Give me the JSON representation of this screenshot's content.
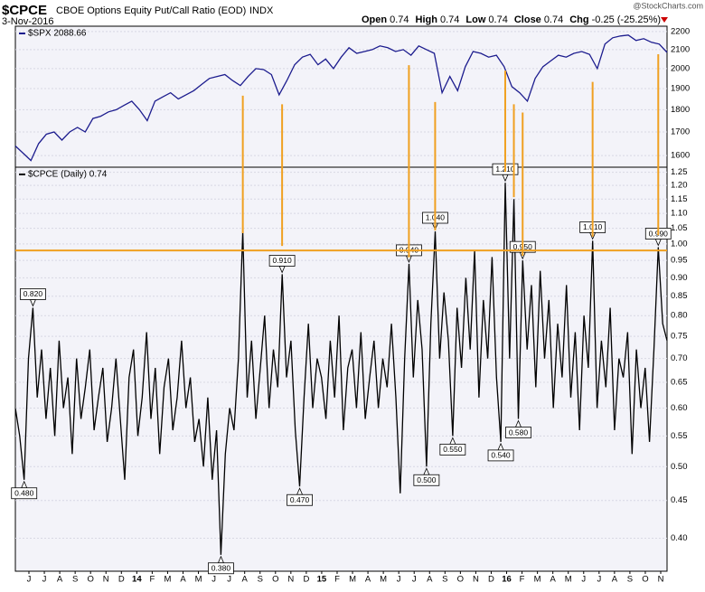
{
  "header": {
    "symbol": "$CPCE",
    "name": "CBOE Options Equity Put/Call Ratio (EOD)",
    "exchange": "INDX",
    "date": "3-Nov-2016",
    "quote": [
      {
        "label": "Open",
        "value": "0.74"
      },
      {
        "label": "High",
        "value": "0.74"
      },
      {
        "label": "Low",
        "value": "0.74"
      },
      {
        "label": "Close",
        "value": "0.74"
      },
      {
        "label": "Chg",
        "value": "-0.25 (-25.25%)"
      }
    ],
    "credit": "@StockCharts.com"
  },
  "chart_data": [
    {
      "type": "line",
      "log_scale": true,
      "grid": true,
      "legend": "$SPX 2088.66",
      "xlim": [
        0.12,
        42.41
      ],
      "ylim": [
        1553,
        2230
      ],
      "yticks": [
        1600,
        1700,
        1800,
        1900,
        2000,
        2100,
        2200
      ],
      "series": [
        {
          "name": "$SPX",
          "color": "#1c1c8e",
          "values": [
            1640,
            1610,
            1580,
            1650,
            1690,
            1700,
            1665,
            1700,
            1720,
            1700,
            1760,
            1770,
            1790,
            1800,
            1820,
            1840,
            1800,
            1750,
            1840,
            1860,
            1880,
            1850,
            1870,
            1890,
            1920,
            1950,
            1960,
            1970,
            1940,
            1915,
            1960,
            2000,
            1995,
            1970,
            1870,
            1940,
            2020,
            2060,
            2075,
            2020,
            2050,
            2000,
            2060,
            2110,
            2080,
            2090,
            2100,
            2120,
            2110,
            2090,
            2100,
            2070,
            2120,
            2100,
            2080,
            1880,
            1960,
            1890,
            2010,
            2090,
            2080,
            2060,
            2070,
            2010,
            1910,
            1880,
            1840,
            1950,
            2010,
            2040,
            2070,
            2060,
            2080,
            2090,
            2075,
            2000,
            2130,
            2165,
            2175,
            2180,
            2150,
            2160,
            2140,
            2130,
            2085
          ]
        }
      ]
    },
    {
      "type": "line",
      "log_scale": true,
      "grid": true,
      "legend": "$CPCE (Daily) 0.74",
      "xlim": [
        0.12,
        42.41
      ],
      "ylim": [
        0.361,
        1.27
      ],
      "yticks": [
        1.25,
        {
          "value": 1.2,
          "label": "1.20"
        },
        1.15,
        {
          "value": 1.1,
          "label": "1.10"
        },
        1.05,
        {
          "value": 1,
          "label": "1.00"
        },
        0.95,
        {
          "value": 0.9,
          "label": "0.90"
        },
        0.85,
        {
          "value": 0.8,
          "label": "0.80"
        },
        0.75,
        {
          "value": 0.7,
          "label": "0.70"
        },
        0.65,
        {
          "value": 0.6,
          "label": "0.60"
        },
        0.55,
        {
          "value": 0.5,
          "label": "0.50"
        },
        0.45,
        {
          "value": 0.4,
          "label": "0.40"
        }
      ],
      "xticks": [
        {
          "value": 1,
          "label": "J"
        },
        {
          "value": 2,
          "label": "J"
        },
        {
          "value": 3,
          "label": "A"
        },
        {
          "value": 4,
          "label": "S"
        },
        {
          "value": 5,
          "label": "O"
        },
        {
          "value": 6,
          "label": "N"
        },
        {
          "value": 7,
          "label": "D"
        },
        {
          "value": 8,
          "label": "14"
        },
        {
          "value": 9,
          "label": "F"
        },
        {
          "value": 10,
          "label": "M"
        },
        {
          "value": 11,
          "label": "A"
        },
        {
          "value": 12,
          "label": "M"
        },
        {
          "value": 13,
          "label": "J"
        },
        {
          "value": 14,
          "label": "J"
        },
        {
          "value": 15,
          "label": "A"
        },
        {
          "value": 16,
          "label": "S"
        },
        {
          "value": 17,
          "label": "O"
        },
        {
          "value": 18,
          "label": "N"
        },
        {
          "value": 19,
          "label": "D"
        },
        {
          "value": 20,
          "label": "15"
        },
        {
          "value": 21,
          "label": "F"
        },
        {
          "value": 22,
          "label": "M"
        },
        {
          "value": 23,
          "label": "A"
        },
        {
          "value": 24,
          "label": "M"
        },
        {
          "value": 25,
          "label": "J"
        },
        {
          "value": 26,
          "label": "J"
        },
        {
          "value": 27,
          "label": "A"
        },
        {
          "value": 28,
          "label": "S"
        },
        {
          "value": 29,
          "label": "O"
        },
        {
          "value": 30,
          "label": "N"
        },
        {
          "value": 31,
          "label": "D"
        },
        {
          "value": 32,
          "label": "16"
        },
        {
          "value": 33,
          "label": "F"
        },
        {
          "value": 34,
          "label": "M"
        },
        {
          "value": 35,
          "label": "A"
        },
        {
          "value": 36,
          "label": "M"
        },
        {
          "value": 37,
          "label": "J"
        },
        {
          "value": 38,
          "label": "J"
        },
        {
          "value": 39,
          "label": "A"
        },
        {
          "value": 40,
          "label": "S"
        },
        {
          "value": 41,
          "label": "O"
        },
        {
          "value": 42,
          "label": "N"
        }
      ],
      "series": [
        {
          "name": "$CPCE",
          "color": "#000000",
          "values": [
            0.6,
            0.55,
            0.48,
            0.7,
            0.82,
            0.62,
            0.72,
            0.58,
            0.68,
            0.55,
            0.74,
            0.6,
            0.66,
            0.52,
            0.7,
            0.58,
            0.64,
            0.72,
            0.56,
            0.62,
            0.68,
            0.54,
            0.6,
            0.7,
            0.58,
            0.48,
            0.66,
            0.72,
            0.55,
            0.62,
            0.76,
            0.58,
            0.68,
            0.52,
            0.64,
            0.7,
            0.56,
            0.62,
            0.74,
            0.6,
            0.66,
            0.54,
            0.58,
            0.5,
            0.62,
            0.48,
            0.56,
            0.38,
            0.52,
            0.6,
            0.56,
            0.7,
            1.04,
            0.62,
            0.74,
            0.58,
            0.68,
            0.8,
            0.6,
            0.72,
            0.64,
            0.91,
            0.66,
            0.74,
            0.56,
            0.47,
            0.62,
            0.78,
            0.6,
            0.7,
            0.66,
            0.58,
            0.74,
            0.62,
            0.8,
            0.56,
            0.68,
            0.72,
            0.6,
            0.76,
            0.58,
            0.66,
            0.74,
            0.6,
            0.7,
            0.64,
            0.78,
            0.62,
            0.46,
            0.7,
            0.94,
            0.66,
            0.84,
            0.72,
            0.5,
            0.78,
            1.04,
            0.7,
            0.86,
            0.74,
            0.55,
            0.82,
            0.68,
            0.9,
            0.72,
            0.98,
            0.62,
            0.84,
            0.7,
            0.96,
            0.66,
            0.54,
            1.21,
            0.7,
            1.15,
            0.58,
            0.95,
            0.72,
            0.88,
            0.64,
            0.92,
            0.7,
            0.84,
            0.6,
            0.78,
            0.66,
            0.88,
            0.62,
            0.76,
            0.56,
            0.8,
            0.68,
            1.01,
            0.6,
            0.74,
            0.64,
            0.82,
            0.56,
            0.7,
            0.66,
            0.76,
            0.52,
            0.72,
            0.6,
            0.68,
            0.54,
            0.72,
            0.99,
            0.78,
            0.74
          ]
        }
      ],
      "callouts": {
        "x": [
          0.69,
          1.26,
          13.46,
          17.43,
          18.57,
          25.66,
          26.8,
          27.36,
          28.5,
          31.62,
          31.91,
          32.76,
          33.04,
          37.58,
          41.84
        ],
        "values": [
          0.48,
          0.82,
          0.38,
          0.91,
          0.47,
          0.94,
          0.5,
          1.04,
          0.55,
          0.54,
          1.21,
          0.58,
          0.95,
          1.01,
          0.99
        ],
        "value_labels": [
          "0.480",
          "0.820",
          "0.380",
          "0.910",
          "0.470",
          "0.940",
          "0.500",
          "1.040",
          "0.550",
          "0.540",
          "1.210",
          "0.580",
          "0.950",
          "1.010",
          "0.990"
        ]
      }
    }
  ],
  "annotations": {
    "color": "#f0a020",
    "level": 0.98,
    "x": [
      14.88,
      17.43,
      25.66,
      27.36,
      31.91,
      32.47,
      33.04,
      37.58,
      41.84
    ],
    "from": [
      1866,
      1825,
      2018,
      1836,
      1990,
      1825,
      1787,
      1933,
      2075
    ],
    "to": [
      1.034,
      0.994,
      0.959,
      1.043,
      1.252,
      1.157,
      0.964,
      1.023,
      1.028
    ]
  }
}
